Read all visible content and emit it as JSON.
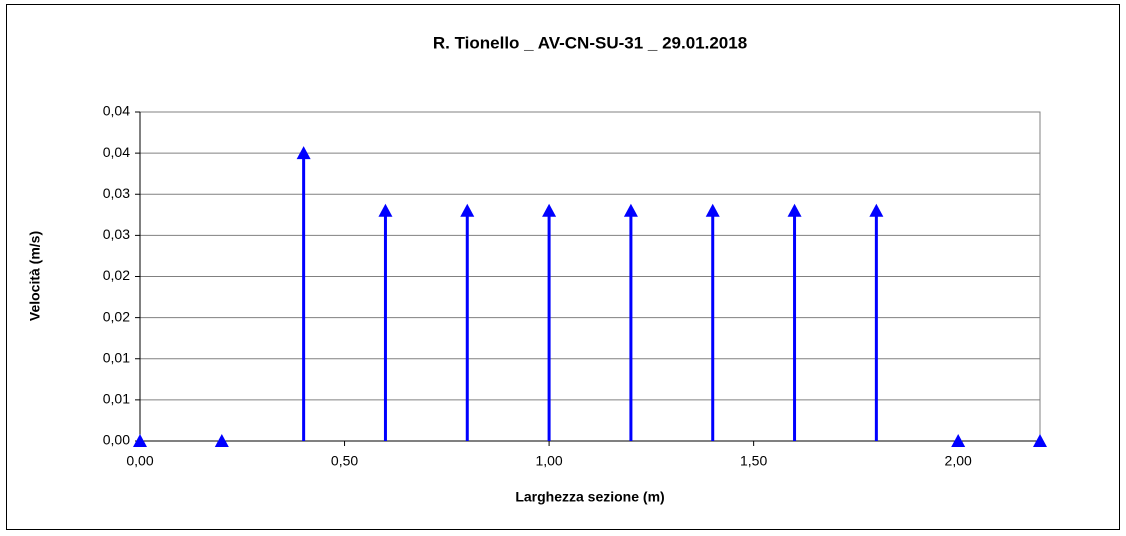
{
  "chart_data": {
    "type": "stem",
    "title": "R. Tionello _ AV-CN-SU-31 _ 29.01.2018",
    "x_label": "Larghezza sezione (m)",
    "y_label": "Velocità (m/s)",
    "x": [
      0,
      0.2,
      0.4,
      0.6,
      0.8,
      1.0,
      1.2,
      1.4,
      1.6,
      1.8,
      2.0,
      2.2
    ],
    "values": [
      0,
      0,
      0.035,
      0.028,
      0.028,
      0.028,
      0.028,
      0.028,
      0.028,
      0.028,
      0,
      0
    ],
    "color": "#0000ff",
    "xlim": [
      0,
      2.2
    ],
    "xticks": [
      {
        "value": 0,
        "label": "0,00"
      },
      {
        "value": 0.5,
        "label": "0,50"
      },
      {
        "value": 1.0,
        "label": "1,00"
      },
      {
        "value": 1.5,
        "label": "1,50"
      },
      {
        "value": 2.0,
        "label": "2,00"
      }
    ],
    "ylim": [
      0,
      0.04
    ],
    "yticks": [
      {
        "value": 0,
        "label": "0,00"
      },
      {
        "value": 0.005,
        "label": "0,01"
      },
      {
        "value": 0.01,
        "label": "0,01"
      },
      {
        "value": 0.015,
        "label": "0,02"
      },
      {
        "value": 0.02,
        "label": "0,02"
      },
      {
        "value": 0.025,
        "label": "0,03"
      },
      {
        "value": 0.03,
        "label": "0,03"
      },
      {
        "value": 0.035,
        "label": "0,04"
      },
      {
        "value": 0.04,
        "label": "0,04"
      }
    ],
    "grid": true
  }
}
